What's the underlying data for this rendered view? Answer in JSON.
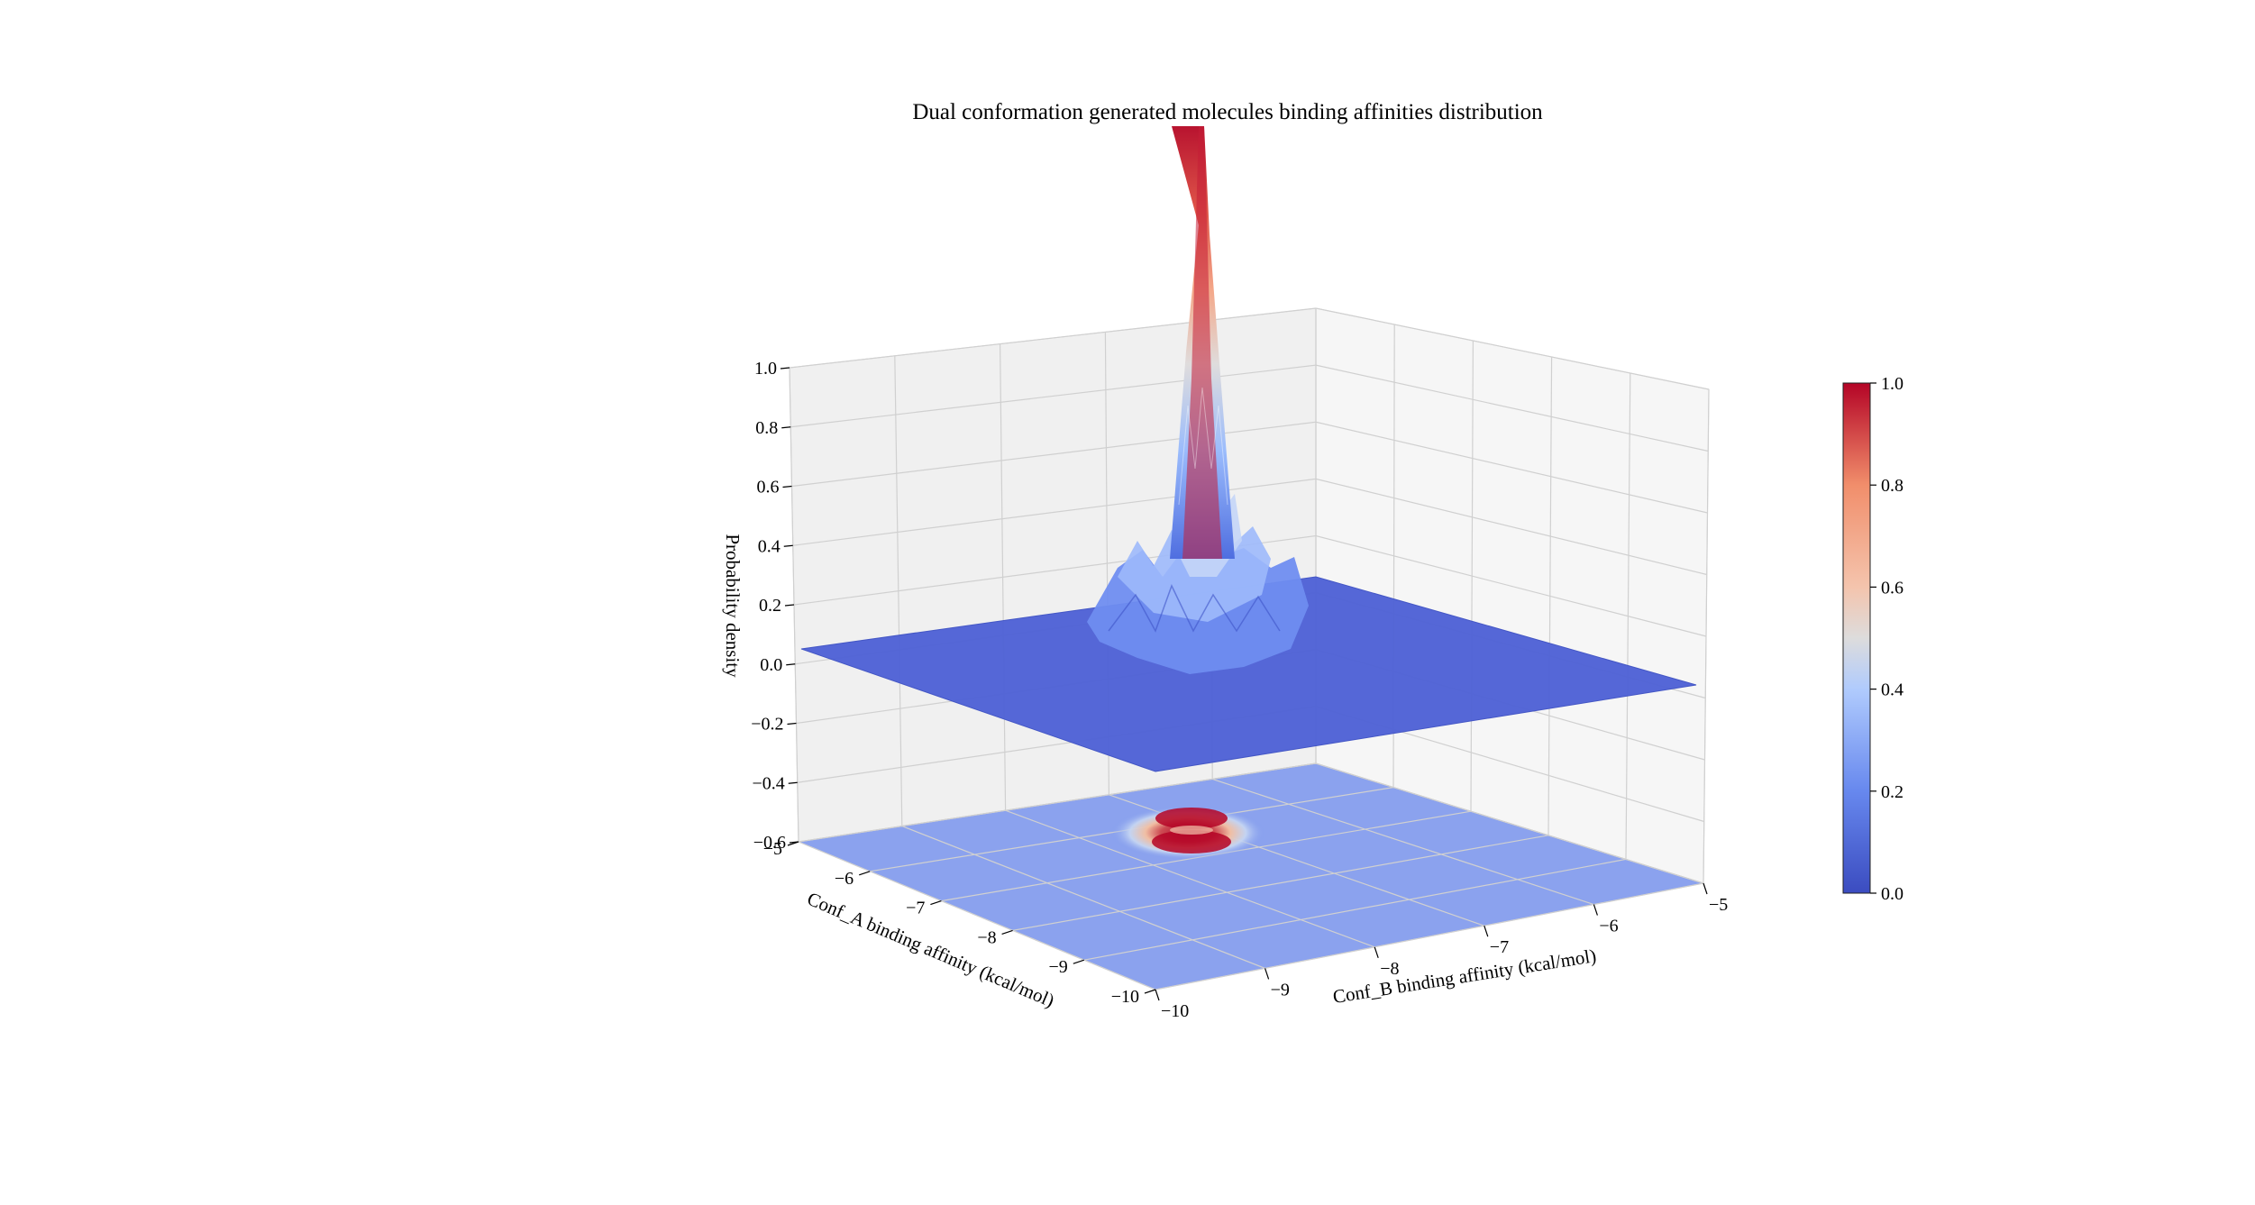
{
  "chart_data": {
    "type": "surface3d",
    "title": "Dual conformation generated molecules binding affinities distribution",
    "x_axis": {
      "label": "Conf_B binding affinity  (kcal/mol)",
      "range": [
        -10,
        -5
      ],
      "ticks": [
        -10,
        -9,
        -8,
        -7,
        -6,
        -5
      ],
      "tick_labels": [
        "−10",
        "−9",
        "−8",
        "−7",
        "−6",
        "−5"
      ]
    },
    "y_axis": {
      "label": "Conf_A binding affinity  (kcal/mol)",
      "range": [
        -10,
        -5
      ],
      "ticks": [
        -10,
        -9,
        -8,
        -7,
        -6,
        -5
      ],
      "tick_labels": [
        "−10",
        "−9",
        "−8",
        "−7",
        "−6",
        "−5"
      ]
    },
    "z_axis": {
      "label": "Probability density",
      "range": [
        -0.6,
        1.0
      ],
      "ticks": [
        -0.6,
        -0.4,
        -0.2,
        0.0,
        0.2,
        0.4,
        0.6,
        0.8,
        1.0
      ],
      "tick_labels": [
        "−0.6",
        "−0.4",
        "−0.2",
        "0.0",
        "0.2",
        "0.4",
        "0.6",
        "0.8",
        "1.0"
      ]
    },
    "colorbar": {
      "colormap": "coolwarm",
      "range": [
        0.0,
        1.0
      ],
      "ticks": [
        0.0,
        0.2,
        0.4,
        0.6,
        0.8,
        1.0
      ],
      "tick_labels": [
        "0.0",
        "0.2",
        "0.4",
        "0.6",
        "0.8",
        "1.0"
      ]
    },
    "surface": {
      "description_peak_center": {
        "conf_b": -7.7,
        "conf_a": -7.9
      },
      "peak_density": 1.0,
      "base_density": 0.0
    },
    "contour_projection": {
      "offset_z": -0.6,
      "density_centers": [
        {
          "conf_b": -7.7,
          "conf_a": -7.8
        },
        {
          "conf_b": -7.7,
          "conf_a": -8.2
        }
      ]
    },
    "grid": true,
    "colors": {
      "surface_low": "#4f62d6",
      "peak_high": "#b40426",
      "pane": "#f2f2f2",
      "grid": "#cfcfcf"
    }
  }
}
